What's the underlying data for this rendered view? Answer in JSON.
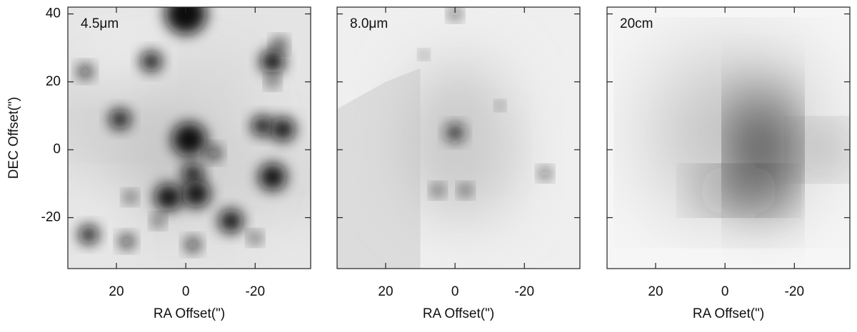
{
  "chart_data": [
    {
      "type": "image",
      "label": "4.5μm",
      "x_label": "RA Offset(\")",
      "y_label": "DEC Offset(\")",
      "xlim": [
        34,
        -36
      ],
      "ylim": [
        -35,
        42
      ],
      "xticks": [
        20,
        0,
        -20
      ],
      "yticks": [
        40,
        20,
        0,
        -20
      ],
      "ytick_labels": true
    },
    {
      "type": "image",
      "label": "8.0μm",
      "x_label": "RA Offset(\")",
      "xlim": [
        34,
        -36
      ],
      "ylim": [
        -35,
        42
      ],
      "xticks": [
        20,
        0,
        -20
      ],
      "yticks": [
        40,
        20,
        0,
        -20
      ],
      "ytick_labels": false
    },
    {
      "type": "image",
      "label": "20cm",
      "x_label": "RA Offset(\")",
      "xlim": [
        34,
        -36
      ],
      "ylim": [
        -35,
        42
      ],
      "xticks": [
        20,
        0,
        -20
      ],
      "yticks": [
        40,
        20,
        0,
        -20
      ],
      "ytick_labels": false
    }
  ]
}
